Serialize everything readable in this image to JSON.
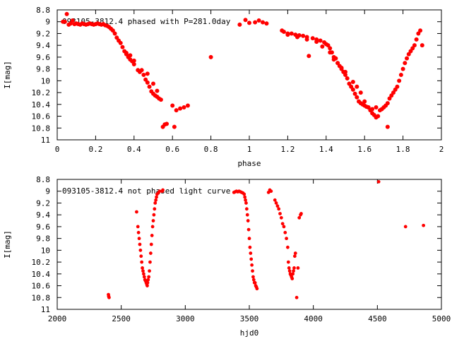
{
  "chart_data": [
    {
      "type": "scatter",
      "title": "093105-3812.4 phased with P=281.0day",
      "xlabel": "phase",
      "ylabel": "I[mag]",
      "xlim": [
        0,
        2
      ],
      "ylim": [
        11,
        8.8
      ],
      "y_inverted": true,
      "xticks": [
        "0",
        "0.2",
        "0.4",
        "0.6",
        "0.8",
        "1",
        "1.2",
        "1.4",
        "1.6",
        "1.8",
        "2"
      ],
      "yticks": [
        "8.8",
        "9",
        "9.2",
        "9.4",
        "9.6",
        "9.8",
        "10",
        "10.2",
        "10.4",
        "10.6",
        "10.8",
        "11"
      ],
      "grid": false,
      "marker_color": "#ff0000",
      "series": [
        {
          "x": [
            0.03,
            0.04,
            0.05,
            0.06,
            0.07,
            0.08,
            0.09,
            0.1,
            0.11,
            0.12,
            0.13,
            0.14,
            0.15,
            0.16,
            0.17,
            0.18,
            0.19,
            0.2,
            0.21,
            0.22,
            0.23,
            0.24,
            0.25,
            0.26,
            0.27,
            0.28,
            0.29,
            0.3,
            0.31,
            0.32,
            0.33,
            0.34,
            0.35,
            0.36,
            0.37,
            0.38,
            0.39,
            0.4,
            0.42,
            0.43,
            0.45,
            0.46,
            0.47,
            0.48,
            0.49,
            0.5,
            0.51,
            0.52,
            0.53,
            0.54,
            0.55,
            0.56,
            0.57,
            0.6,
            0.61,
            0.62,
            0.64,
            0.66,
            0.68,
            0.8,
            0.95,
            0.98,
            1.0,
            1.03,
            1.05,
            1.07,
            1.09,
            1.17,
            1.18,
            1.2,
            1.22,
            1.24,
            1.26,
            1.28,
            1.3,
            1.31,
            1.33,
            1.35,
            1.37,
            1.39,
            1.4,
            1.41,
            1.42,
            1.43,
            1.44,
            1.45,
            1.46,
            1.47,
            1.48,
            1.49,
            1.5,
            1.51,
            1.52,
            1.53,
            1.54,
            1.55,
            1.56,
            1.57,
            1.58,
            1.59,
            1.6,
            1.61,
            1.62,
            1.63,
            1.64,
            1.65,
            1.66,
            1.67,
            1.68,
            1.69,
            1.7,
            1.71,
            1.72,
            1.73,
            1.74,
            1.75,
            1.76,
            1.77,
            1.78,
            1.79,
            1.8,
            1.81,
            1.82,
            1.83,
            1.84,
            1.85,
            1.86,
            1.87,
            1.88,
            1.89,
            1.9
          ],
          "y": [
            9.0,
            9.0,
            8.87,
            9.05,
            9.03,
            8.98,
            9.04,
            9.03,
            9.04,
            9.05,
            9.03,
            9.04,
            9.05,
            9.04,
            9.03,
            9.04,
            9.05,
            9.04,
            9.03,
            9.04,
            9.05,
            9.04,
            9.06,
            9.07,
            9.09,
            9.12,
            9.15,
            9.2,
            9.27,
            9.32,
            9.36,
            9.43,
            9.5,
            9.55,
            9.6,
            9.64,
            9.67,
            9.72,
            9.82,
            9.85,
            9.9,
            9.98,
            10.03,
            10.1,
            10.18,
            10.22,
            10.25,
            10.27,
            10.3,
            10.32,
            10.78,
            10.74,
            10.73,
            10.42,
            10.78,
            10.5,
            10.47,
            10.45,
            10.42,
            9.6,
            9.05,
            8.97,
            9.02,
            9.01,
            8.98,
            9.01,
            9.03,
            9.15,
            9.17,
            9.2,
            9.2,
            9.22,
            9.23,
            9.24,
            9.26,
            9.58,
            9.28,
            9.3,
            9.32,
            9.35,
            9.38,
            9.4,
            9.45,
            9.52,
            9.6,
            9.62,
            9.7,
            9.75,
            9.8,
            9.85,
            9.9,
            9.96,
            10.05,
            10.1,
            10.15,
            10.22,
            10.28,
            10.35,
            10.38,
            10.4,
            10.42,
            10.44,
            10.45,
            10.5,
            10.55,
            10.58,
            10.62,
            10.6,
            10.5,
            10.48,
            10.45,
            10.42,
            10.38,
            10.3,
            10.25,
            10.2,
            10.15,
            10.1,
            10.0,
            9.9,
            9.8,
            9.7,
            9.62,
            9.55,
            9.5,
            9.45,
            9.4,
            9.3,
            9.2,
            9.15,
            9.4
          ],
          "extra_points": [
            [
              1.44,
              9.64
            ],
            [
              1.46,
              9.7
            ],
            [
              1.48,
              9.78
            ],
            [
              1.5,
              9.85
            ],
            [
              1.54,
              10.02
            ],
            [
              1.56,
              10.1
            ],
            [
              1.58,
              10.2
            ],
            [
              1.6,
              10.35
            ],
            [
              1.62,
              10.45
            ],
            [
              1.64,
              10.48
            ],
            [
              1.66,
              10.45
            ],
            [
              1.72,
              10.78
            ],
            [
              1.2,
              9.22
            ],
            [
              1.25,
              9.26
            ],
            [
              1.3,
              9.3
            ],
            [
              1.35,
              9.34
            ],
            [
              1.38,
              9.42
            ],
            [
              1.42,
              9.52
            ],
            [
              0.36,
              9.53
            ],
            [
              0.38,
              9.57
            ],
            [
              0.4,
              9.66
            ],
            [
              0.44,
              9.82
            ],
            [
              0.47,
              9.88
            ],
            [
              0.5,
              10.05
            ],
            [
              0.52,
              10.17
            ]
          ]
        }
      ]
    },
    {
      "type": "scatter",
      "title": "093105-3812.4 not phased light curve",
      "xlabel": "hjd0",
      "ylabel": "I[mag]",
      "xlim": [
        2000,
        5000
      ],
      "ylim": [
        11,
        8.8
      ],
      "y_inverted": true,
      "xticks": [
        "2000",
        "2500",
        "3000",
        "3500",
        "4000",
        "4500",
        "5000"
      ],
      "yticks": [
        "8.8",
        "9",
        "9.2",
        "9.4",
        "9.6",
        "9.8",
        "10",
        "10.2",
        "10.4",
        "10.6",
        "10.8",
        "11"
      ],
      "grid": false,
      "marker_color": "#ff0000",
      "series": [
        {
          "x": [
            2400,
            2402,
            2405,
            2620,
            2630,
            2635,
            2640,
            2645,
            2650,
            2655,
            2660,
            2665,
            2670,
            2675,
            2680,
            2685,
            2690,
            2695,
            2700,
            2703,
            2706,
            2710,
            2715,
            2720,
            2725,
            2730,
            2735,
            2740,
            2745,
            2750,
            2755,
            2760,
            2765,
            2770,
            2775,
            2780,
            2790,
            2800,
            2820,
            2825,
            3380,
            3390,
            3400,
            3410,
            3420,
            3430,
            3440,
            3450,
            3460,
            3465,
            3470,
            3475,
            3480,
            3485,
            3490,
            3495,
            3500,
            3505,
            3510,
            3515,
            3520,
            3525,
            3530,
            3535,
            3540,
            3545,
            3550,
            3555,
            3560,
            3650,
            3660,
            3670,
            3700,
            3710,
            3720,
            3730,
            3740,
            3750,
            3760,
            3770,
            3780,
            3790,
            3800,
            3805,
            3810,
            3815,
            3820,
            3825,
            3830,
            3835,
            3840,
            3845,
            3850,
            3855,
            3860,
            3870,
            3880,
            3890,
            3900,
            3905,
            4510,
            4720,
            4860
          ],
          "y": [
            10.75,
            10.78,
            10.8,
            9.35,
            9.6,
            9.7,
            9.8,
            9.9,
            10.0,
            10.1,
            10.2,
            10.3,
            10.35,
            10.4,
            10.45,
            10.5,
            10.52,
            10.55,
            10.58,
            10.6,
            10.55,
            10.5,
            10.45,
            10.35,
            10.2,
            10.05,
            9.9,
            9.75,
            9.6,
            9.5,
            9.4,
            9.3,
            9.2,
            9.15,
            9.1,
            9.05,
            9.03,
            9.0,
            9.0,
            8.98,
            9.02,
            9.01,
            9.0,
            9.01,
            9.0,
            9.01,
            9.02,
            9.03,
            9.05,
            9.1,
            9.15,
            9.2,
            9.3,
            9.4,
            9.5,
            9.65,
            9.8,
            9.95,
            10.05,
            10.15,
            10.25,
            10.35,
            10.45,
            10.5,
            10.55,
            10.55,
            10.6,
            10.62,
            10.65,
            9.02,
            8.98,
            9.0,
            9.15,
            9.2,
            9.25,
            9.3,
            9.38,
            9.45,
            9.55,
            9.6,
            9.7,
            9.8,
            9.95,
            10.2,
            10.3,
            10.35,
            10.4,
            10.42,
            10.45,
            10.48,
            10.4,
            10.35,
            10.3,
            10.1,
            10.05,
            10.8,
            10.3,
            9.45,
            9.4,
            9.38,
            8.84,
            9.6,
            9.58
          ]
        }
      ]
    }
  ]
}
